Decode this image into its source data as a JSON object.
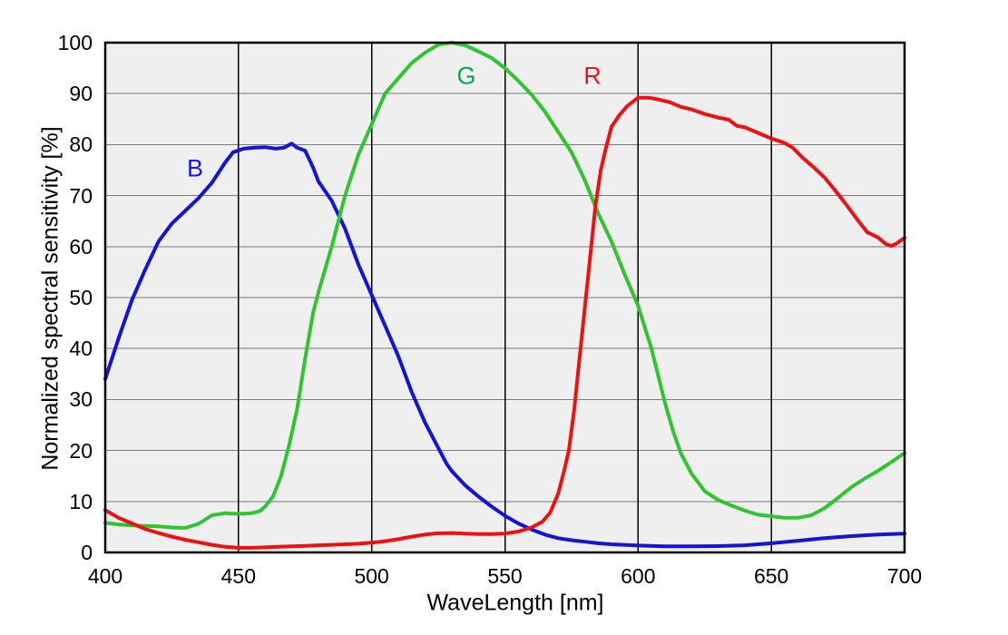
{
  "figure": {
    "background": "#ffffff",
    "plot_background": "#efefef",
    "border_color": "#000000",
    "h_grid_color": "#7a7a7a",
    "v_grid_color": "#000000"
  },
  "chart_data": {
    "type": "line",
    "title": "",
    "xlabel": "WaveLength [nm]",
    "ylabel": "Normalized spectral sensitivity [%]",
    "xlim": [
      400,
      700
    ],
    "ylim": [
      0,
      100
    ],
    "xticks": [
      400,
      450,
      500,
      550,
      600,
      650,
      700
    ],
    "yticks": [
      0,
      10,
      20,
      30,
      40,
      50,
      60,
      70,
      80,
      90,
      100
    ],
    "grid": "on",
    "legend_position": "labels-on-plot",
    "series": [
      {
        "name": "B",
        "color": "#1414d6",
        "label_color": "#1a1ad6",
        "points": [
          [
            400,
            34
          ],
          [
            405,
            42
          ],
          [
            410,
            49.5
          ],
          [
            415,
            55.5
          ],
          [
            420,
            61
          ],
          [
            425,
            64.5
          ],
          [
            430,
            67
          ],
          [
            435,
            69.5
          ],
          [
            440,
            72.5
          ],
          [
            445,
            76.5
          ],
          [
            448,
            78.5
          ],
          [
            452,
            79.2
          ],
          [
            456,
            79.4
          ],
          [
            460,
            79.5
          ],
          [
            464,
            79.2
          ],
          [
            467,
            79.4
          ],
          [
            470,
            80.2
          ],
          [
            472,
            79.4
          ],
          [
            475,
            78.8
          ],
          [
            478,
            75.5
          ],
          [
            480,
            72.8
          ],
          [
            485,
            69
          ],
          [
            490,
            63.5
          ],
          [
            495,
            56.5
          ],
          [
            500,
            50.5
          ],
          [
            505,
            44.5
          ],
          [
            510,
            38.5
          ],
          [
            515,
            31.5
          ],
          [
            520,
            25.5
          ],
          [
            525,
            20.5
          ],
          [
            528,
            17.5
          ],
          [
            530,
            16
          ],
          [
            535,
            13.2
          ],
          [
            540,
            11
          ],
          [
            545,
            9
          ],
          [
            550,
            7.2
          ],
          [
            555,
            5.7
          ],
          [
            560,
            4.5
          ],
          [
            565,
            3.5
          ],
          [
            570,
            2.8
          ],
          [
            575,
            2.4
          ],
          [
            580,
            2.1
          ],
          [
            585,
            1.8
          ],
          [
            590,
            1.6
          ],
          [
            600,
            1.35
          ],
          [
            610,
            1.2
          ],
          [
            620,
            1.2
          ],
          [
            630,
            1.25
          ],
          [
            640,
            1.4
          ],
          [
            650,
            1.8
          ],
          [
            660,
            2.3
          ],
          [
            670,
            2.8
          ],
          [
            680,
            3.2
          ],
          [
            690,
            3.5
          ],
          [
            700,
            3.7
          ]
        ]
      },
      {
        "name": "G",
        "color": "#2ec52e",
        "label_color": "#0aa550",
        "points": [
          [
            400,
            5.8
          ],
          [
            405,
            5.5
          ],
          [
            410,
            5.3
          ],
          [
            415,
            5.2
          ],
          [
            420,
            5.1
          ],
          [
            425,
            4.9
          ],
          [
            430,
            4.8
          ],
          [
            435,
            5.6
          ],
          [
            440,
            7.3
          ],
          [
            445,
            7.7
          ],
          [
            448,
            7.6
          ],
          [
            452,
            7.6
          ],
          [
            455,
            7.7
          ],
          [
            458,
            8.1
          ],
          [
            460,
            9
          ],
          [
            463,
            11
          ],
          [
            466,
            15
          ],
          [
            469,
            21
          ],
          [
            472,
            28
          ],
          [
            475,
            38
          ],
          [
            478,
            47
          ],
          [
            480,
            51
          ],
          [
            485,
            60
          ],
          [
            490,
            70
          ],
          [
            495,
            78
          ],
          [
            500,
            84
          ],
          [
            505,
            90
          ],
          [
            510,
            93
          ],
          [
            515,
            96
          ],
          [
            520,
            98
          ],
          [
            525,
            99.6
          ],
          [
            530,
            100
          ],
          [
            535,
            99.5
          ],
          [
            540,
            98.3
          ],
          [
            545,
            97
          ],
          [
            550,
            95
          ],
          [
            555,
            92.5
          ],
          [
            560,
            89.8
          ],
          [
            565,
            86.5
          ],
          [
            570,
            82.5
          ],
          [
            575,
            78.5
          ],
          [
            580,
            73
          ],
          [
            585,
            66.5
          ],
          [
            590,
            61
          ],
          [
            595,
            54.5
          ],
          [
            600,
            48.4
          ],
          [
            605,
            40
          ],
          [
            610,
            29.5
          ],
          [
            613,
            24
          ],
          [
            616,
            19.5
          ],
          [
            620,
            15.5
          ],
          [
            625,
            12
          ],
          [
            630,
            10.3
          ],
          [
            635,
            9.2
          ],
          [
            640,
            8.2
          ],
          [
            645,
            7.4
          ],
          [
            650,
            7.1
          ],
          [
            655,
            6.8
          ],
          [
            660,
            6.8
          ],
          [
            665,
            7.3
          ],
          [
            670,
            8.7
          ],
          [
            675,
            10.7
          ],
          [
            680,
            12.8
          ],
          [
            685,
            14.5
          ],
          [
            690,
            16
          ],
          [
            695,
            17.7
          ],
          [
            700,
            19.5
          ]
        ]
      },
      {
        "name": "R",
        "color": "#ee1111",
        "label_color": "#f01414",
        "points": [
          [
            400,
            8.3
          ],
          [
            405,
            6.8
          ],
          [
            410,
            5.7
          ],
          [
            415,
            4.6
          ],
          [
            420,
            3.8
          ],
          [
            425,
            3.1
          ],
          [
            430,
            2.5
          ],
          [
            435,
            2
          ],
          [
            440,
            1.5
          ],
          [
            445,
            1.1
          ],
          [
            450,
            0.9
          ],
          [
            455,
            0.9
          ],
          [
            460,
            1
          ],
          [
            465,
            1.1
          ],
          [
            470,
            1.2
          ],
          [
            475,
            1.3
          ],
          [
            480,
            1.4
          ],
          [
            485,
            1.5
          ],
          [
            490,
            1.6
          ],
          [
            495,
            1.7
          ],
          [
            500,
            1.9
          ],
          [
            505,
            2.2
          ],
          [
            510,
            2.6
          ],
          [
            515,
            3.1
          ],
          [
            520,
            3.5
          ],
          [
            525,
            3.75
          ],
          [
            530,
            3.8
          ],
          [
            535,
            3.7
          ],
          [
            540,
            3.6
          ],
          [
            545,
            3.6
          ],
          [
            550,
            3.7
          ],
          [
            555,
            4.1
          ],
          [
            560,
            4.9
          ],
          [
            564,
            6
          ],
          [
            567,
            7.8
          ],
          [
            570,
            11.5
          ],
          [
            572,
            15.5
          ],
          [
            574,
            20
          ],
          [
            576,
            28
          ],
          [
            578,
            38
          ],
          [
            580,
            48
          ],
          [
            582,
            58
          ],
          [
            584,
            68
          ],
          [
            586,
            75
          ],
          [
            588,
            79.5
          ],
          [
            590,
            83.5
          ],
          [
            593,
            85.8
          ],
          [
            596,
            87.6
          ],
          [
            600,
            89.2
          ],
          [
            604,
            89.2
          ],
          [
            608,
            88.8
          ],
          [
            612,
            88.3
          ],
          [
            616,
            87.4
          ],
          [
            620,
            86.9
          ],
          [
            625,
            86
          ],
          [
            630,
            85.3
          ],
          [
            634,
            84.9
          ],
          [
            637,
            83.7
          ],
          [
            640,
            83.4
          ],
          [
            645,
            82.3
          ],
          [
            650,
            81.2
          ],
          [
            655,
            80.3
          ],
          [
            658,
            79.4
          ],
          [
            662,
            77.3
          ],
          [
            666,
            75.5
          ],
          [
            670,
            73.5
          ],
          [
            674,
            71
          ],
          [
            678,
            68.3
          ],
          [
            682,
            65.5
          ],
          [
            686,
            62.8
          ],
          [
            690,
            61.8
          ],
          [
            693,
            60.5
          ],
          [
            695,
            60.1
          ],
          [
            697,
            60.6
          ],
          [
            700,
            61.7
          ]
        ]
      }
    ]
  }
}
